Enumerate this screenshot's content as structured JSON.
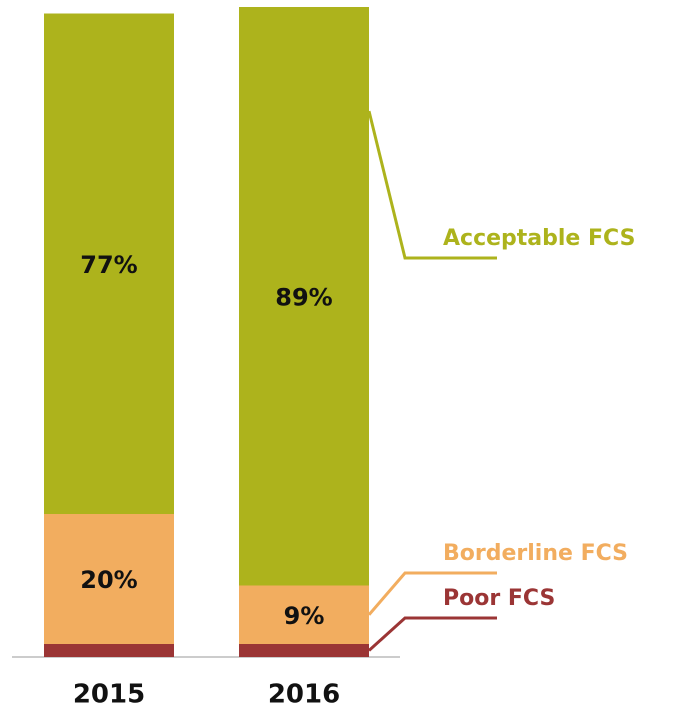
{
  "chart_data": {
    "type": "stacked_bar",
    "categories": [
      "2015",
      "2016"
    ],
    "series": [
      {
        "name": "Poor FCS",
        "color": "#9b3535",
        "values": [
          2,
          2
        ]
      },
      {
        "name": "Borderline FCS",
        "color": "#f2ad5f",
        "values": [
          20,
          9
        ],
        "value_labels": [
          "20%",
          "9%"
        ]
      },
      {
        "name": "Acceptable FCS",
        "color": "#adb31c",
        "values": [
          77,
          89
        ],
        "value_labels": [
          "77%",
          "89%"
        ]
      }
    ],
    "ylim": [
      0,
      100
    ]
  }
}
